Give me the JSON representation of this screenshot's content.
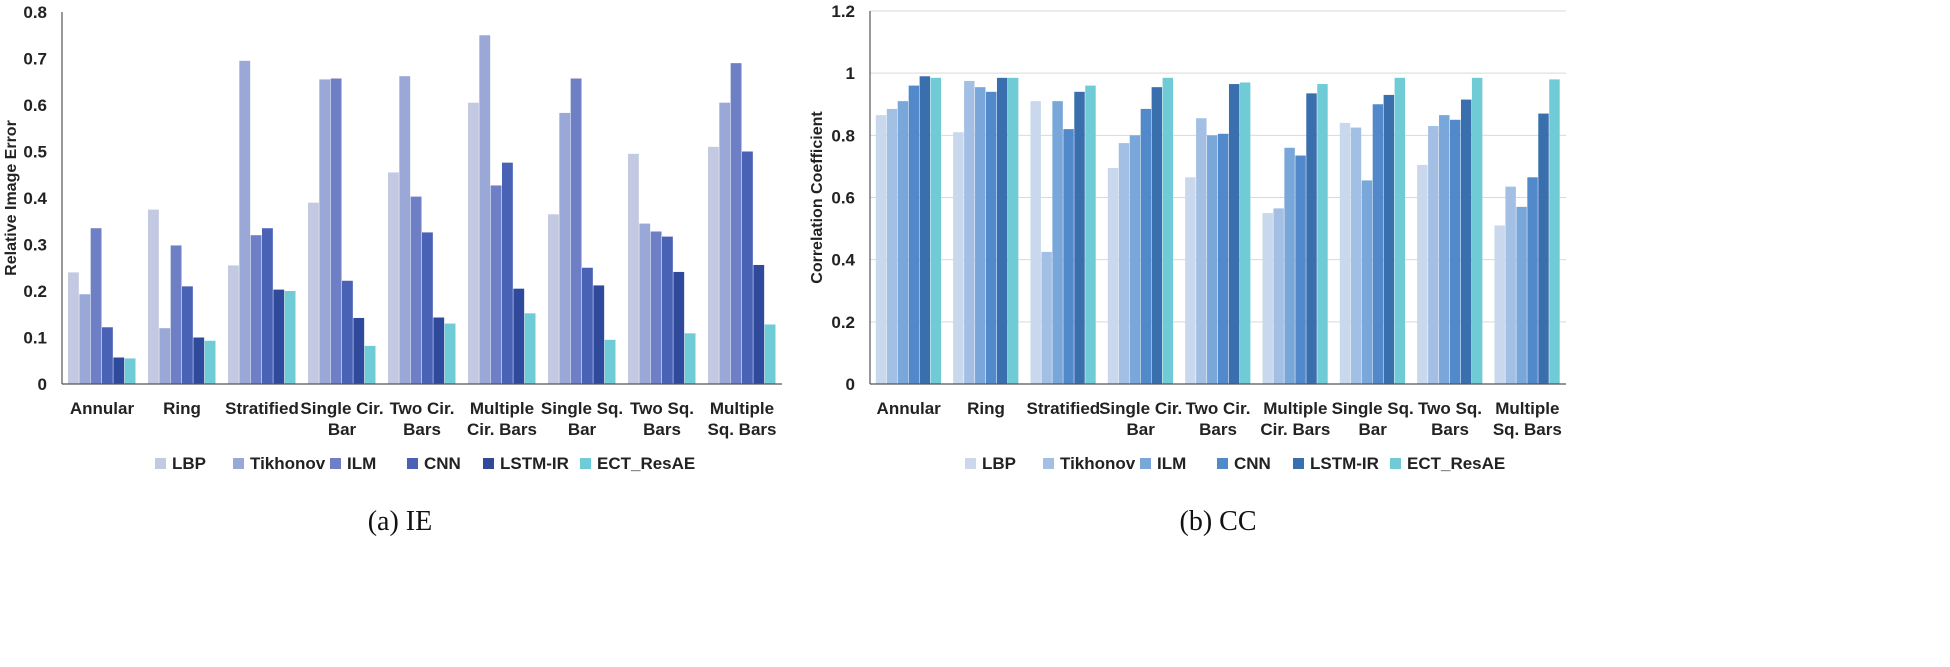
{
  "chart_data": [
    {
      "type": "bar",
      "caption": "(a) IE",
      "ylabel": "Relative Image Error",
      "ylim": [
        0,
        0.8
      ],
      "yticks": [
        "0",
        "0.1",
        "0.2",
        "0.3",
        "0.4",
        "0.5",
        "0.6",
        "0.7",
        "0.8"
      ],
      "categories": [
        "Annular",
        "Ring",
        "Stratified",
        "Single Cir.\nBar",
        "Two Cir.\nBars",
        "Multiple\nCir. Bars",
        "Single Sq.\nBar",
        "Two Sq.\nBars",
        "Multiple\nSq. Bars"
      ],
      "grid": false,
      "legend_position": "bottom",
      "series": [
        {
          "name": "LBP",
          "color": "#c4c9e2",
          "values": [
            0.24,
            0.375,
            0.255,
            0.39,
            0.455,
            0.605,
            0.365,
            0.495,
            0.51
          ]
        },
        {
          "name": "Tikhonov",
          "color": "#9aa8d8",
          "values": [
            0.193,
            0.12,
            0.695,
            0.655,
            0.662,
            0.75,
            0.583,
            0.345,
            0.605
          ]
        },
        {
          "name": "ILM",
          "color": "#6f7fc6",
          "values": [
            0.335,
            0.298,
            0.32,
            0.657,
            0.403,
            0.427,
            0.657,
            0.328,
            0.69
          ]
        },
        {
          "name": "CNN",
          "color": "#4a62b5",
          "values": [
            0.122,
            0.21,
            0.335,
            0.222,
            0.326,
            0.476,
            0.25,
            0.317,
            0.5
          ]
        },
        {
          "name": "LSTM-IR",
          "color": "#2f4a9a",
          "values": [
            0.057,
            0.1,
            0.203,
            0.142,
            0.143,
            0.205,
            0.212,
            0.241,
            0.256
          ]
        },
        {
          "name": "ECT_ResAE",
          "color": "#6fcbd6",
          "values": [
            0.055,
            0.093,
            0.2,
            0.082,
            0.13,
            0.152,
            0.095,
            0.109,
            0.128
          ]
        }
      ]
    },
    {
      "type": "bar",
      "caption": "(b) CC",
      "ylabel": "Correlation Coefficient",
      "ylim": [
        0,
        1.2
      ],
      "yticks": [
        "0",
        "0.2",
        "0.4",
        "0.6",
        "0.8",
        "1",
        "1.2"
      ],
      "categories": [
        "Annular",
        "Ring",
        "Stratified",
        "Single Cir.\nBar",
        "Two Cir.\nBars",
        "Multiple\nCir. Bars",
        "Single Sq.\nBar",
        "Two Sq.\nBars",
        "Multiple\nSq. Bars"
      ],
      "grid": true,
      "legend_position": "bottom",
      "series": [
        {
          "name": "LBP",
          "color": "#c9d8ec",
          "values": [
            0.865,
            0.81,
            0.91,
            0.695,
            0.665,
            0.55,
            0.84,
            0.705,
            0.51
          ]
        },
        {
          "name": "Tikhonov",
          "color": "#a3c0e4",
          "values": [
            0.885,
            0.975,
            0.425,
            0.775,
            0.855,
            0.565,
            0.825,
            0.83,
            0.635
          ]
        },
        {
          "name": "ILM",
          "color": "#7aa7da",
          "values": [
            0.91,
            0.955,
            0.91,
            0.8,
            0.8,
            0.76,
            0.655,
            0.865,
            0.57
          ]
        },
        {
          "name": "CNN",
          "color": "#5289cb",
          "values": [
            0.96,
            0.94,
            0.82,
            0.885,
            0.805,
            0.735,
            0.9,
            0.85,
            0.665
          ]
        },
        {
          "name": "LSTM-IR",
          "color": "#3a6fae",
          "values": [
            0.99,
            0.985,
            0.94,
            0.955,
            0.965,
            0.935,
            0.93,
            0.915,
            0.87
          ]
        },
        {
          "name": "ECT_ResAE",
          "color": "#6fcbd6",
          "values": [
            0.985,
            0.985,
            0.96,
            0.985,
            0.97,
            0.965,
            0.985,
            0.985,
            0.98
          ]
        }
      ]
    }
  ]
}
